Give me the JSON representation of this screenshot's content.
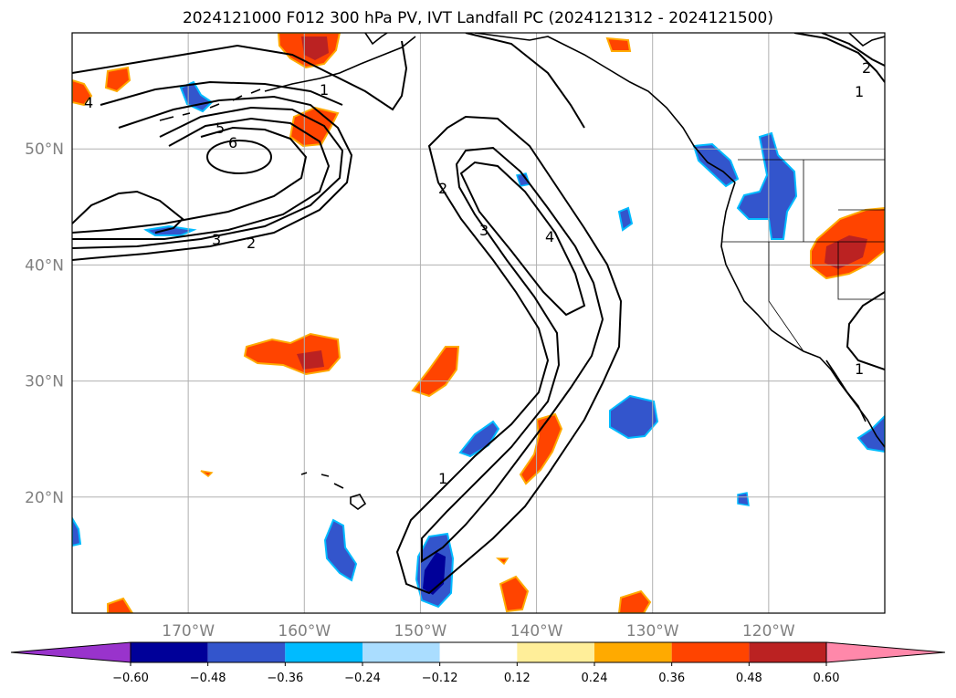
{
  "title": "2024121000 F012 300 hPa PV, IVT Landfall PC (2024121312 - 2024121500)",
  "map": {
    "lon_range": [
      -180,
      -110
    ],
    "lat_range": [
      10,
      60
    ],
    "lat_labels": [
      {
        "lat": 50,
        "text": "50°N"
      },
      {
        "lat": 40,
        "text": "40°N"
      },
      {
        "lat": 30,
        "text": "30°N"
      },
      {
        "lat": 20,
        "text": "20°N"
      }
    ],
    "lon_labels": [
      {
        "lon": -170,
        "text": "170°W"
      },
      {
        "lon": -160,
        "text": "160°W"
      },
      {
        "lon": -150,
        "text": "150°W"
      },
      {
        "lon": -140,
        "text": "140°W"
      },
      {
        "lon": -130,
        "text": "130°W"
      },
      {
        "lon": -120,
        "text": "120°W"
      }
    ],
    "contour_labels": [
      "1",
      "2",
      "3",
      "4",
      "5",
      "6"
    ]
  },
  "colorbar": {
    "colors": [
      "#9933cc",
      "#000099",
      "#3355cc",
      "#00bbff",
      "#aaddff",
      "#ffffff",
      "#ffee99",
      "#ffaa00",
      "#ff4400",
      "#bb2222",
      "#ff88aa"
    ],
    "ticks": [
      "−0.60",
      "−0.48",
      "−0.36",
      "−0.24",
      "−0.12",
      "0.12",
      "0.24",
      "0.36",
      "0.48",
      "0.60"
    ]
  },
  "colors": {
    "grid": "#b0b0b0",
    "contour": "#000000",
    "coast": "#000000"
  }
}
